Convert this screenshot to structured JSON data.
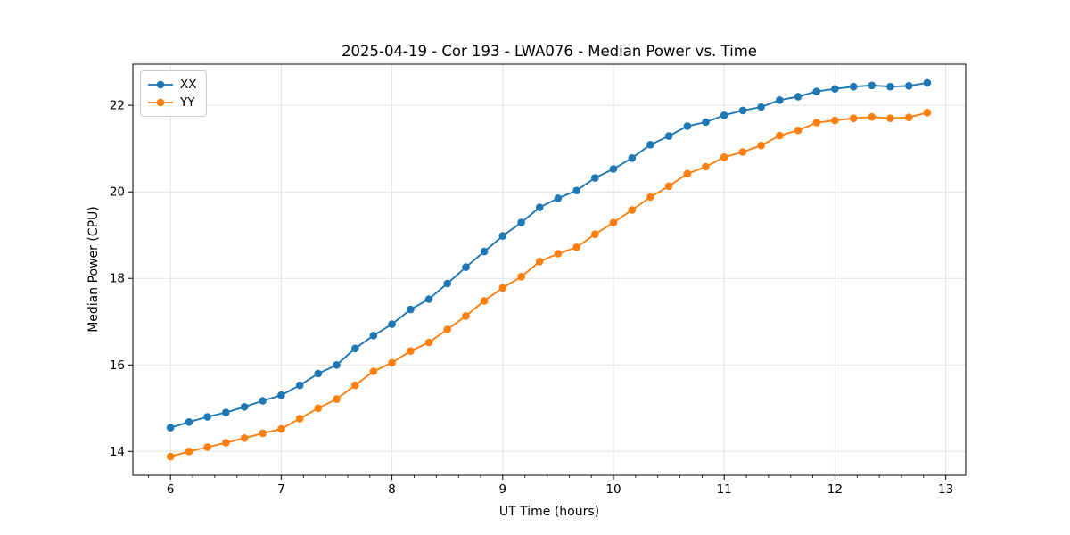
{
  "chart_data": {
    "type": "line",
    "title": "2025-04-19 - Cor 193 - LWA076 - Median Power vs. Time",
    "xlabel": "UT Time (hours)",
    "ylabel": "Median Power (CPU)",
    "xlim": [
      5.66,
      13.18
    ],
    "ylim": [
      13.45,
      22.95
    ],
    "xticks": [
      6,
      7,
      8,
      9,
      10,
      11,
      12,
      13
    ],
    "yticks": [
      14,
      16,
      18,
      20,
      22
    ],
    "x_minor_tick_step": 0.2,
    "grid": true,
    "grid_color": "#e3e3e3",
    "legend_position": "upper left",
    "x": [
      6.0,
      6.167,
      6.333,
      6.5,
      6.667,
      6.833,
      7.0,
      7.167,
      7.333,
      7.5,
      7.667,
      7.833,
      8.0,
      8.167,
      8.333,
      8.5,
      8.667,
      8.833,
      9.0,
      9.167,
      9.333,
      9.5,
      9.667,
      9.833,
      10.0,
      10.167,
      10.333,
      10.5,
      10.667,
      10.833,
      11.0,
      11.167,
      11.333,
      11.5,
      11.667,
      11.833,
      12.0,
      12.167,
      12.333,
      12.5,
      12.667,
      12.833
    ],
    "series": [
      {
        "name": "XX",
        "color": "#1f77b4",
        "values": [
          14.55,
          14.68,
          14.8,
          14.9,
          15.03,
          15.17,
          15.3,
          15.53,
          15.8,
          16.0,
          16.38,
          16.68,
          16.94,
          17.28,
          17.52,
          17.88,
          18.26,
          18.62,
          18.98,
          19.29,
          19.64,
          19.85,
          20.03,
          20.32,
          20.53,
          20.78,
          21.09,
          21.29,
          21.52,
          21.61,
          21.77,
          21.88,
          21.96,
          22.12,
          22.2,
          22.32,
          22.38,
          22.43,
          22.46,
          22.43,
          22.45,
          22.52
        ]
      },
      {
        "name": "YY",
        "color": "#ff7f0e",
        "values": [
          13.88,
          14.0,
          14.1,
          14.2,
          14.31,
          14.42,
          14.52,
          14.76,
          15.0,
          15.21,
          15.53,
          15.85,
          16.05,
          16.32,
          16.52,
          16.82,
          17.13,
          17.48,
          17.78,
          18.04,
          18.39,
          18.57,
          18.72,
          19.02,
          19.29,
          19.58,
          19.88,
          20.13,
          20.42,
          20.58,
          20.8,
          20.92,
          21.07,
          21.3,
          21.42,
          21.6,
          21.65,
          21.7,
          21.73,
          21.7,
          21.72,
          21.83
        ]
      }
    ]
  }
}
